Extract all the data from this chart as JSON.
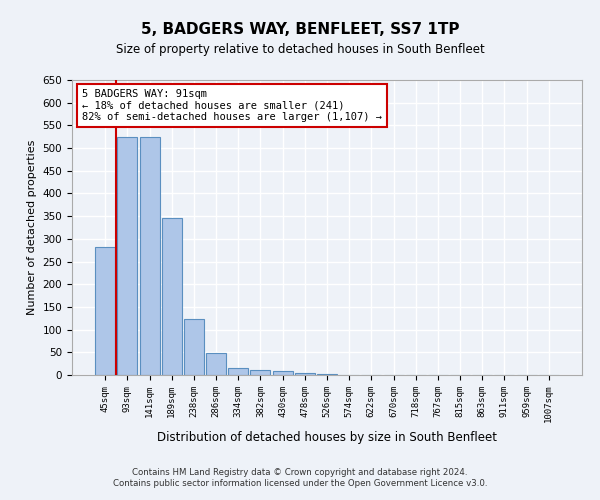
{
  "title": "5, BADGERS WAY, BENFLEET, SS7 1TP",
  "subtitle": "Size of property relative to detached houses in South Benfleet",
  "xlabel": "Distribution of detached houses by size in South Benfleet",
  "ylabel": "Number of detached properties",
  "bar_color": "#aec6e8",
  "bar_edge_color": "#5a8fc0",
  "categories": [
    "45sqm",
    "93sqm",
    "141sqm",
    "189sqm",
    "238sqm",
    "286sqm",
    "334sqm",
    "382sqm",
    "430sqm",
    "478sqm",
    "526sqm",
    "574sqm",
    "622sqm",
    "670sqm",
    "718sqm",
    "767sqm",
    "815sqm",
    "863sqm",
    "911sqm",
    "959sqm",
    "1007sqm"
  ],
  "values": [
    283,
    525,
    525,
    347,
    123,
    48,
    16,
    10,
    8,
    5,
    2,
    1,
    1,
    1,
    1,
    0,
    0,
    0,
    0,
    0,
    1
  ],
  "ylim": [
    0,
    650
  ],
  "yticks": [
    0,
    50,
    100,
    150,
    200,
    250,
    300,
    350,
    400,
    450,
    500,
    550,
    600,
    650
  ],
  "property_line_x": 0.5,
  "annotation_text": "5 BADGERS WAY: 91sqm\n← 18% of detached houses are smaller (241)\n82% of semi-detached houses are larger (1,107) →",
  "annotation_box_color": "#ffffff",
  "annotation_box_edge": "#cc0000",
  "vline_color": "#cc0000",
  "footer1": "Contains HM Land Registry data © Crown copyright and database right 2024.",
  "footer2": "Contains public sector information licensed under the Open Government Licence v3.0.",
  "background_color": "#eef2f8",
  "grid_color": "#ffffff"
}
